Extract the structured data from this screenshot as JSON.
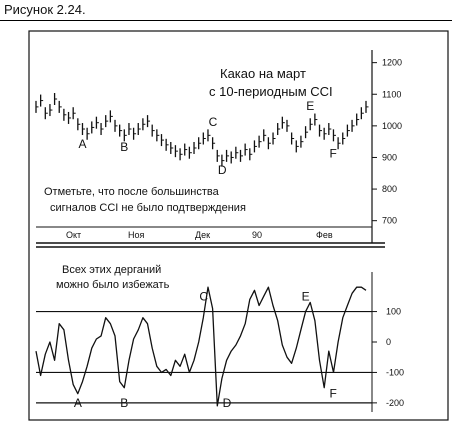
{
  "figure_caption": "Рисунок 2.24.",
  "colors": {
    "ink": "#111111",
    "background": "#ffffff"
  },
  "chart_data": [
    {
      "type": "line",
      "panel": "price",
      "title": "Какао на март",
      "subtitle": "с 10-периодным CCI",
      "note_line1": "Отметьте, что после большинства",
      "note_line2": "сигналов CCI не было подтверждения",
      "y_ticks": [
        700,
        800,
        900,
        1000,
        1100,
        1200
      ],
      "ylim": [
        680,
        1240
      ],
      "month_labels": [
        "Окт",
        "Ноя",
        "Дек",
        "90",
        "Фев"
      ],
      "grid": false,
      "points": [
        {
          "x": 0,
          "y": 1060
        },
        {
          "x": 1,
          "y": 1080
        },
        {
          "x": 2,
          "y": 1040
        },
        {
          "x": 3,
          "y": 1050
        },
        {
          "x": 4,
          "y": 1085
        },
        {
          "x": 5,
          "y": 1060
        },
        {
          "x": 6,
          "y": 1035
        },
        {
          "x": 7,
          "y": 1025
        },
        {
          "x": 8,
          "y": 1040
        },
        {
          "x": 9,
          "y": 1005
        },
        {
          "x": 10,
          "y": 990
        },
        {
          "x": 11,
          "y": 975
        },
        {
          "x": 12,
          "y": 995
        },
        {
          "x": 13,
          "y": 1010
        },
        {
          "x": 14,
          "y": 990
        },
        {
          "x": 15,
          "y": 1015
        },
        {
          "x": 16,
          "y": 1030
        },
        {
          "x": 17,
          "y": 1000
        },
        {
          "x": 18,
          "y": 985
        },
        {
          "x": 19,
          "y": 970
        },
        {
          "x": 20,
          "y": 990
        },
        {
          "x": 21,
          "y": 975
        },
        {
          "x": 22,
          "y": 990
        },
        {
          "x": 23,
          "y": 1005
        },
        {
          "x": 24,
          "y": 1015
        },
        {
          "x": 25,
          "y": 985
        },
        {
          "x": 26,
          "y": 970
        },
        {
          "x": 27,
          "y": 955
        },
        {
          "x": 28,
          "y": 940
        },
        {
          "x": 29,
          "y": 930
        },
        {
          "x": 30,
          "y": 920
        },
        {
          "x": 31,
          "y": 910
        },
        {
          "x": 32,
          "y": 925
        },
        {
          "x": 33,
          "y": 915
        },
        {
          "x": 34,
          "y": 930
        },
        {
          "x": 35,
          "y": 945
        },
        {
          "x": 36,
          "y": 960
        },
        {
          "x": 37,
          "y": 970
        },
        {
          "x": 38,
          "y": 945
        },
        {
          "x": 39,
          "y": 905
        },
        {
          "x": 40,
          "y": 890
        },
        {
          "x": 41,
          "y": 905
        },
        {
          "x": 42,
          "y": 900
        },
        {
          "x": 43,
          "y": 915
        },
        {
          "x": 44,
          "y": 905
        },
        {
          "x": 45,
          "y": 925
        },
        {
          "x": 46,
          "y": 910
        },
        {
          "x": 47,
          "y": 935
        },
        {
          "x": 48,
          "y": 950
        },
        {
          "x": 49,
          "y": 970
        },
        {
          "x": 50,
          "y": 945
        },
        {
          "x": 51,
          "y": 960
        },
        {
          "x": 52,
          "y": 990
        },
        {
          "x": 53,
          "y": 1010
        },
        {
          "x": 54,
          "y": 1000
        },
        {
          "x": 55,
          "y": 960
        },
        {
          "x": 56,
          "y": 935
        },
        {
          "x": 57,
          "y": 950
        },
        {
          "x": 58,
          "y": 980
        },
        {
          "x": 59,
          "y": 1005
        },
        {
          "x": 60,
          "y": 1020
        },
        {
          "x": 61,
          "y": 985
        },
        {
          "x": 62,
          "y": 975
        },
        {
          "x": 63,
          "y": 990
        },
        {
          "x": 64,
          "y": 970
        },
        {
          "x": 65,
          "y": 945
        },
        {
          "x": 66,
          "y": 960
        },
        {
          "x": 67,
          "y": 985
        },
        {
          "x": 68,
          "y": 1000
        },
        {
          "x": 69,
          "y": 1020
        },
        {
          "x": 70,
          "y": 1040
        },
        {
          "x": 71,
          "y": 1060
        }
      ],
      "annotations": [
        {
          "text": "A",
          "x": 10,
          "y": 930
        },
        {
          "text": "B",
          "x": 19,
          "y": 920
        },
        {
          "text": "C",
          "x": 38,
          "y": 1000
        },
        {
          "text": "D",
          "x": 40,
          "y": 848
        },
        {
          "text": "E",
          "x": 59,
          "y": 1050
        },
        {
          "text": "F",
          "x": 64,
          "y": 900
        }
      ]
    },
    {
      "type": "line",
      "panel": "cci",
      "note_line1": "Всех этих дерганий",
      "note_line2": "можно было избежать",
      "y_ticks": [
        100,
        0,
        -100,
        -200
      ],
      "y_tick_labels": [
        "100",
        "0",
        "-100",
        "-200"
      ],
      "ylim": [
        -230,
        230
      ],
      "reference_lines": [
        100,
        -100,
        -200
      ],
      "points": [
        {
          "x": 0,
          "y": -30
        },
        {
          "x": 1,
          "y": -110
        },
        {
          "x": 2,
          "y": -40
        },
        {
          "x": 3,
          "y": 0
        },
        {
          "x": 4,
          "y": -60
        },
        {
          "x": 5,
          "y": 60
        },
        {
          "x": 6,
          "y": 40
        },
        {
          "x": 7,
          "y": -60
        },
        {
          "x": 8,
          "y": -140
        },
        {
          "x": 9,
          "y": -170
        },
        {
          "x": 10,
          "y": -130
        },
        {
          "x": 11,
          "y": -80
        },
        {
          "x": 12,
          "y": -20
        },
        {
          "x": 13,
          "y": 10
        },
        {
          "x": 14,
          "y": 20
        },
        {
          "x": 15,
          "y": 80
        },
        {
          "x": 16,
          "y": 60
        },
        {
          "x": 17,
          "y": 20
        },
        {
          "x": 18,
          "y": -130
        },
        {
          "x": 19,
          "y": -150
        },
        {
          "x": 20,
          "y": -60
        },
        {
          "x": 21,
          "y": 10
        },
        {
          "x": 22,
          "y": 40
        },
        {
          "x": 23,
          "y": 80
        },
        {
          "x": 24,
          "y": 60
        },
        {
          "x": 25,
          "y": -20
        },
        {
          "x": 26,
          "y": -80
        },
        {
          "x": 27,
          "y": -100
        },
        {
          "x": 28,
          "y": -90
        },
        {
          "x": 29,
          "y": -110
        },
        {
          "x": 30,
          "y": -60
        },
        {
          "x": 31,
          "y": -80
        },
        {
          "x": 32,
          "y": -40
        },
        {
          "x": 33,
          "y": -100
        },
        {
          "x": 34,
          "y": -60
        },
        {
          "x": 35,
          "y": 0
        },
        {
          "x": 36,
          "y": 80
        },
        {
          "x": 37,
          "y": 180
        },
        {
          "x": 38,
          "y": 110
        },
        {
          "x": 39,
          "y": -210
        },
        {
          "x": 40,
          "y": -120
        },
        {
          "x": 41,
          "y": -60
        },
        {
          "x": 42,
          "y": -30
        },
        {
          "x": 43,
          "y": -10
        },
        {
          "x": 44,
          "y": 20
        },
        {
          "x": 45,
          "y": 60
        },
        {
          "x": 46,
          "y": 140
        },
        {
          "x": 47,
          "y": 170
        },
        {
          "x": 48,
          "y": 120
        },
        {
          "x": 49,
          "y": 150
        },
        {
          "x": 50,
          "y": 180
        },
        {
          "x": 51,
          "y": 120
        },
        {
          "x": 52,
          "y": 70
        },
        {
          "x": 53,
          "y": -10
        },
        {
          "x": 54,
          "y": -50
        },
        {
          "x": 55,
          "y": -70
        },
        {
          "x": 56,
          "y": -20
        },
        {
          "x": 57,
          "y": 40
        },
        {
          "x": 58,
          "y": 100
        },
        {
          "x": 59,
          "y": 130
        },
        {
          "x": 60,
          "y": 70
        },
        {
          "x": 61,
          "y": -60
        },
        {
          "x": 62,
          "y": -150
        },
        {
          "x": 63,
          "y": -30
        },
        {
          "x": 64,
          "y": -100
        },
        {
          "x": 65,
          "y": 0
        },
        {
          "x": 66,
          "y": 80
        },
        {
          "x": 67,
          "y": 120
        },
        {
          "x": 68,
          "y": 160
        },
        {
          "x": 69,
          "y": 180
        },
        {
          "x": 70,
          "y": 180
        },
        {
          "x": 71,
          "y": 170
        }
      ],
      "annotations": [
        {
          "text": "A",
          "x": 9,
          "y": -200
        },
        {
          "text": "B",
          "x": 19,
          "y": -200
        },
        {
          "text": "C",
          "x": 36,
          "y": 150
        },
        {
          "text": "D",
          "x": 41,
          "y": -200
        },
        {
          "text": "E",
          "x": 58,
          "y": 150
        },
        {
          "text": "F",
          "x": 64,
          "y": -170
        }
      ]
    }
  ]
}
